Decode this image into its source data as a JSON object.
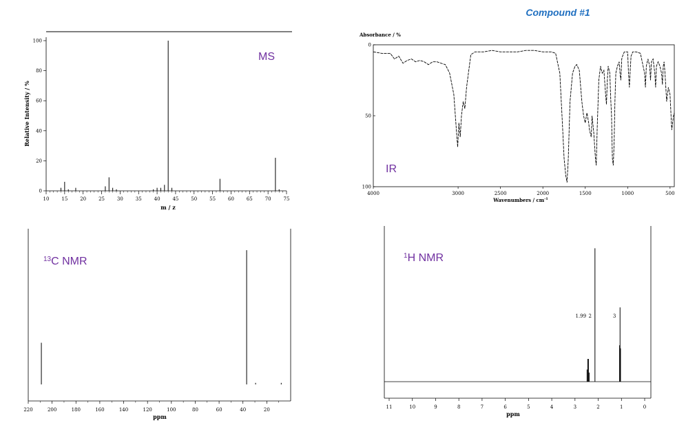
{
  "page_title": "Compound #1",
  "chart_data": [
    {
      "type": "bar",
      "panel": "ms",
      "label": "MS",
      "xlabel": "m / z",
      "ylabel": "Relative Intensity / %",
      "xlim": [
        10,
        75
      ],
      "ylim": [
        0,
        100
      ],
      "x_ticks": [
        "10",
        "15",
        "20",
        "25",
        "30",
        "35",
        "40",
        "45",
        "50",
        "55",
        "60",
        "65",
        "70",
        "75"
      ],
      "y_ticks": [
        "0",
        "20",
        "40",
        "60",
        "80",
        "100"
      ],
      "peaks": [
        {
          "x": 14,
          "y": 2
        },
        {
          "x": 15,
          "y": 6
        },
        {
          "x": 16,
          "y": 1
        },
        {
          "x": 18,
          "y": 2
        },
        {
          "x": 26,
          "y": 3
        },
        {
          "x": 27,
          "y": 9
        },
        {
          "x": 28,
          "y": 2
        },
        {
          "x": 29,
          "y": 1
        },
        {
          "x": 39,
          "y": 1
        },
        {
          "x": 40,
          "y": 2
        },
        {
          "x": 41,
          "y": 2
        },
        {
          "x": 42,
          "y": 4
        },
        {
          "x": 43,
          "y": 100
        },
        {
          "x": 44,
          "y": 2
        },
        {
          "x": 57,
          "y": 8
        },
        {
          "x": 72,
          "y": 22
        },
        {
          "x": 73,
          "y": 1
        }
      ]
    },
    {
      "type": "line",
      "panel": "ir",
      "label": "IR",
      "xlabel": "Wavenumbers / cm",
      "xlabel_sup": "-1",
      "ylabel": "Absorbance / %",
      "xlim": [
        4000,
        450
      ],
      "ylim": [
        100,
        0
      ],
      "x_ticks": [
        "4000",
        "3000",
        "2500",
        "2000",
        "1500",
        "1000",
        "500"
      ],
      "y_ticks": [
        "0",
        "50",
        "100"
      ],
      "points": [
        [
          4000,
          5
        ],
        [
          3900,
          6
        ],
        [
          3800,
          6
        ],
        [
          3750,
          10
        ],
        [
          3700,
          8
        ],
        [
          3650,
          13
        ],
        [
          3600,
          11
        ],
        [
          3550,
          10
        ],
        [
          3500,
          12
        ],
        [
          3450,
          11
        ],
        [
          3400,
          12
        ],
        [
          3350,
          14
        ],
        [
          3300,
          12
        ],
        [
          3250,
          12
        ],
        [
          3200,
          13
        ],
        [
          3150,
          14
        ],
        [
          3100,
          20
        ],
        [
          3050,
          35
        ],
        [
          3020,
          60
        ],
        [
          3005,
          72
        ],
        [
          2990,
          55
        ],
        [
          2975,
          65
        ],
        [
          2960,
          50
        ],
        [
          2940,
          40
        ],
        [
          2920,
          45
        ],
        [
          2900,
          30
        ],
        [
          2850,
          7
        ],
        [
          2800,
          5
        ],
        [
          2700,
          5
        ],
        [
          2600,
          4
        ],
        [
          2500,
          5
        ],
        [
          2400,
          5
        ],
        [
          2300,
          5
        ],
        [
          2200,
          4
        ],
        [
          2100,
          4
        ],
        [
          2000,
          5
        ],
        [
          1900,
          5
        ],
        [
          1850,
          6
        ],
        [
          1800,
          20
        ],
        [
          1770,
          55
        ],
        [
          1750,
          80
        ],
        [
          1730,
          92
        ],
        [
          1715,
          97
        ],
        [
          1700,
          80
        ],
        [
          1680,
          40
        ],
        [
          1650,
          20
        ],
        [
          1620,
          15
        ],
        [
          1600,
          14
        ],
        [
          1570,
          18
        ],
        [
          1540,
          40
        ],
        [
          1520,
          50
        ],
        [
          1500,
          55
        ],
        [
          1480,
          48
        ],
        [
          1460,
          55
        ],
        [
          1450,
          60
        ],
        [
          1430,
          65
        ],
        [
          1420,
          50
        ],
        [
          1400,
          62
        ],
        [
          1380,
          80
        ],
        [
          1370,
          85
        ],
        [
          1360,
          60
        ],
        [
          1340,
          25
        ],
        [
          1320,
          15
        ],
        [
          1300,
          20
        ],
        [
          1280,
          18
        ],
        [
          1260,
          35
        ],
        [
          1250,
          42
        ],
        [
          1240,
          25
        ],
        [
          1230,
          15
        ],
        [
          1210,
          20
        ],
        [
          1200,
          38
        ],
        [
          1190,
          50
        ],
        [
          1180,
          80
        ],
        [
          1170,
          85
        ],
        [
          1160,
          70
        ],
        [
          1150,
          40
        ],
        [
          1140,
          20
        ],
        [
          1120,
          15
        ],
        [
          1100,
          12
        ],
        [
          1090,
          20
        ],
        [
          1080,
          25
        ],
        [
          1070,
          10
        ],
        [
          1060,
          8
        ],
        [
          1040,
          5
        ],
        [
          1000,
          5
        ],
        [
          990,
          20
        ],
        [
          980,
          30
        ],
        [
          970,
          18
        ],
        [
          960,
          8
        ],
        [
          940,
          5
        ],
        [
          900,
          5
        ],
        [
          850,
          6
        ],
        [
          800,
          20
        ],
        [
          790,
          30
        ],
        [
          780,
          15
        ],
        [
          760,
          10
        ],
        [
          740,
          15
        ],
        [
          730,
          25
        ],
        [
          720,
          12
        ],
        [
          700,
          10
        ],
        [
          680,
          20
        ],
        [
          670,
          30
        ],
        [
          660,
          15
        ],
        [
          640,
          12
        ],
        [
          620,
          15
        ],
        [
          600,
          20
        ],
        [
          590,
          28
        ],
        [
          580,
          15
        ],
        [
          570,
          12
        ],
        [
          560,
          20
        ],
        [
          540,
          40
        ],
        [
          520,
          30
        ],
        [
          500,
          35
        ],
        [
          480,
          60
        ],
        [
          460,
          50
        ],
        [
          450,
          48
        ]
      ]
    },
    {
      "type": "bar",
      "panel": "c13",
      "label_sup": "13",
      "label": "C NMR",
      "xlabel": "ppm",
      "xlim": [
        220,
        0
      ],
      "x_ticks": [
        "220",
        "200",
        "180",
        "160",
        "140",
        "120",
        "100",
        "80",
        "60",
        "40",
        "20"
      ],
      "peaks": [
        {
          "x": 209,
          "height": 0.27
        },
        {
          "x": 36.9,
          "height": 0.87
        },
        {
          "x": 29.4,
          "height": 0.01
        },
        {
          "x": 7.9,
          "height": 0.01
        }
      ]
    },
    {
      "type": "bar",
      "panel": "h1",
      "label_sup": "1",
      "label": "H NMR",
      "xlabel": "ppm",
      "xlim": [
        11,
        0
      ],
      "x_ticks": [
        "11",
        "10",
        "9",
        "8",
        "7",
        "6",
        "5",
        "4",
        "3",
        "2",
        "1",
        "0"
      ],
      "integrations": [
        "1.99",
        "2",
        "3"
      ],
      "peaks": [
        {
          "x": 2.48,
          "height": 0.08
        },
        {
          "x": 2.45,
          "height": 0.15
        },
        {
          "x": 2.42,
          "height": 0.15
        },
        {
          "x": 2.39,
          "height": 0.06
        },
        {
          "x": 2.14,
          "height": 0.88
        },
        {
          "x": 1.08,
          "height": 0.24
        },
        {
          "x": 1.06,
          "height": 0.49
        },
        {
          "x": 1.04,
          "height": 0.22
        }
      ]
    }
  ]
}
